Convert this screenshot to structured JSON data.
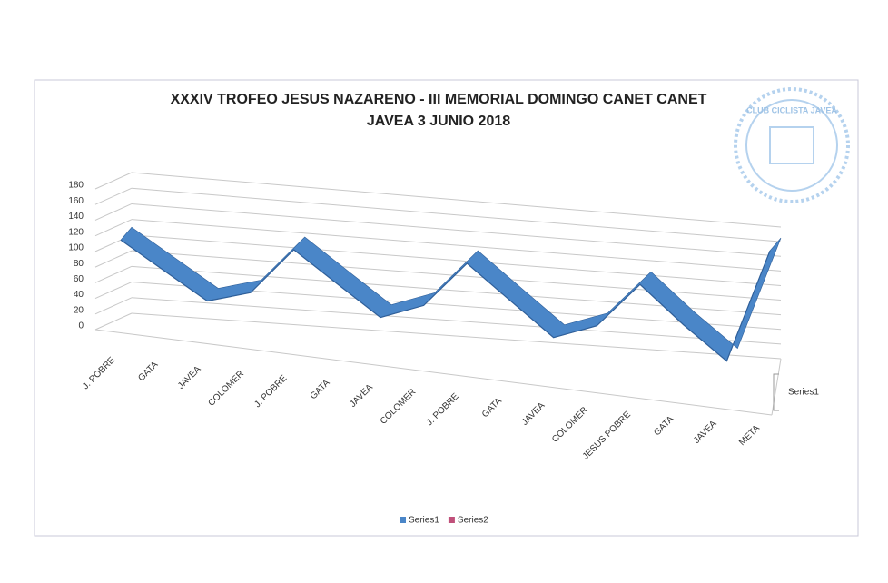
{
  "chart_data": {
    "type": "line3d",
    "title": "XXXIV  TROFEO JESUS NAZARENO - III MEMORIAL DOMINGO CANET CANET",
    "subtitle": "JAVEA 3 JUNIO 2018",
    "stamp": "CLUB CICLISTA JAVEA",
    "categories": [
      "J. POBRE",
      "GATA",
      "JAVEA",
      "COLOMER",
      "J. POBRE",
      "GATA",
      "JAVEA",
      "COLOMER",
      "J. POBRE",
      "GATA",
      "JAVEA",
      "COLOMER",
      "JESUS POBRE",
      "GATA",
      "JAVEA",
      "META"
    ],
    "series": [
      {
        "name": "Series1",
        "color": "#4a86c8",
        "values": [
          110,
          75,
          40,
          55,
          115,
          75,
          35,
          55,
          115,
          70,
          25,
          45,
          105,
          55,
          10,
          165
        ]
      },
      {
        "name": "Series2",
        "color": "#c0507a",
        "values": [
          null,
          null,
          null,
          null,
          null,
          null,
          null,
          null,
          null,
          null,
          null,
          null,
          null,
          null,
          null,
          null
        ]
      }
    ],
    "ylim": [
      0,
      180
    ],
    "yticks": [
      0,
      20,
      40,
      60,
      80,
      100,
      120,
      140,
      160,
      180
    ],
    "grid": true
  }
}
